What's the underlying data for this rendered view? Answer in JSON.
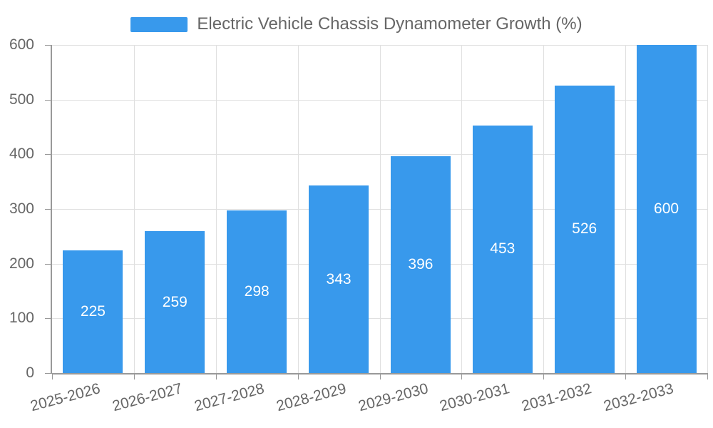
{
  "chart_data": {
    "type": "bar",
    "title": "Electric Vehicle Chassis Dynamometer Growth (%)",
    "categories": [
      "2025-2026",
      "2026-2027",
      "2027-2028",
      "2028-2029",
      "2029-2030",
      "2030-2031",
      "2031-2032",
      "2032-2033"
    ],
    "values": [
      225,
      259,
      298,
      343,
      396,
      453,
      526,
      600
    ],
    "xlabel": "",
    "ylabel": "",
    "ylim": [
      0,
      600
    ],
    "yticks": [
      0,
      100,
      200,
      300,
      400,
      500,
      600
    ],
    "grid": true,
    "legend_position": "top-center",
    "value_labels": "inside-center",
    "colors": {
      "bar": "#3899ec",
      "value_label": "#ffffff",
      "axis_text": "#666666",
      "gridline": "#e0e0e0",
      "axis_line": "#999999"
    }
  }
}
